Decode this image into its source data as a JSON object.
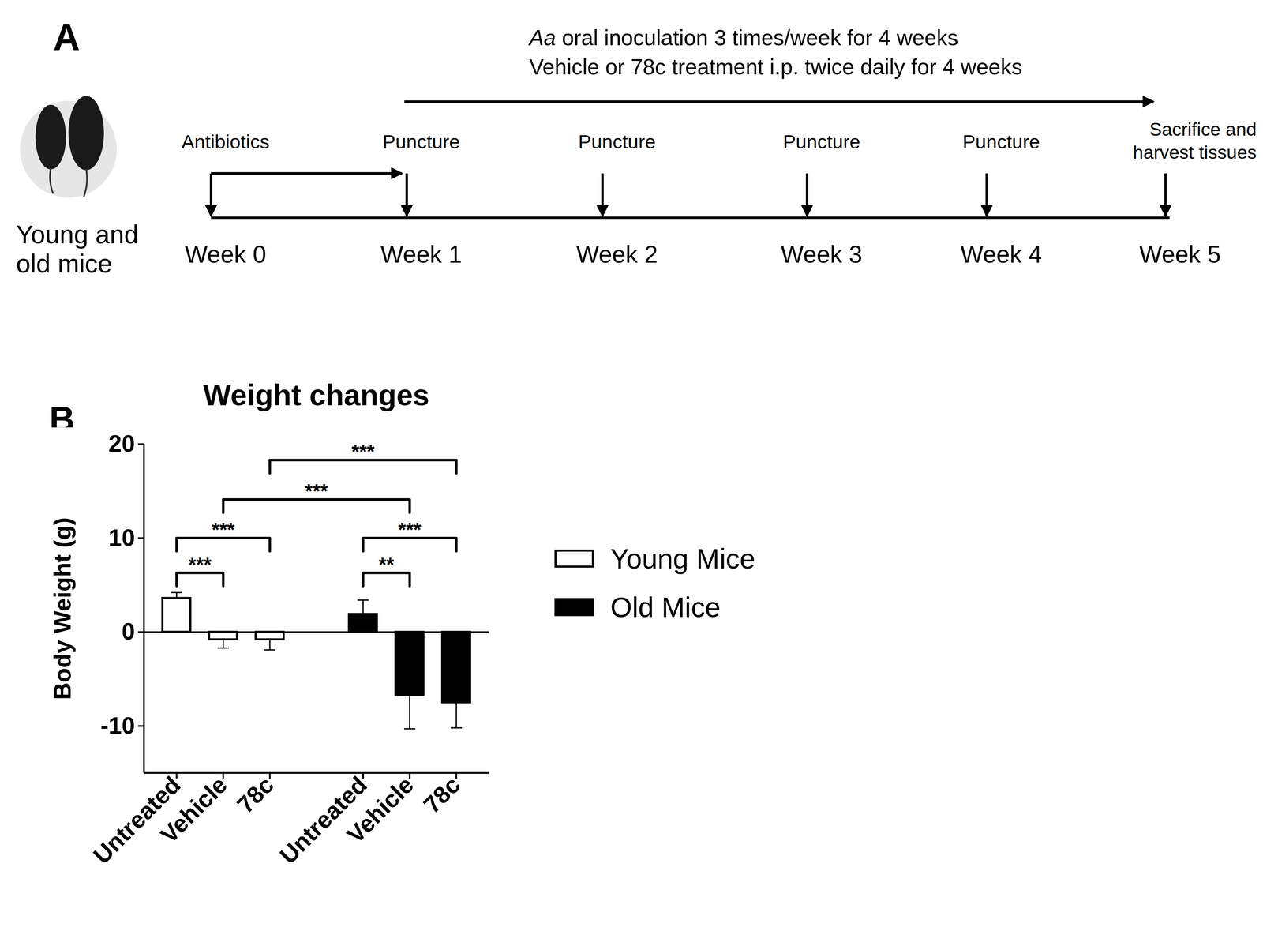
{
  "diagram": {
    "letter": "A",
    "subjects": "Young and old mice",
    "treatment_lines": [
      "Aa oral inoculation 3 times/week for 4 weeks",
      "Vehicle or 78c treatment i.p. twice daily for 4 weeks"
    ],
    "italic_term": "Aa",
    "timeline": [
      {
        "week": "Week 0",
        "event": "Antibiotics"
      },
      {
        "week": "Week 1",
        "event": "Puncture"
      },
      {
        "week": "Week 2",
        "event": "Puncture"
      },
      {
        "week": "Week 3",
        "event": "Puncture"
      },
      {
        "week": "Week 4",
        "event": "Puncture"
      },
      {
        "week": "Week 5",
        "event": "Sacrifice and harvest tissues"
      }
    ]
  },
  "chart_data": {
    "type": "bar",
    "panel_letter": "B",
    "title": "Weight changes",
    "y_label": "Body Weight (g)",
    "categories": [
      "Untreated",
      "Vehicle",
      "78c",
      null,
      "Untreated",
      "Vehicle",
      "78c"
    ],
    "series": [
      {
        "name": "Young Mice",
        "color": "#ffffff",
        "values": [
          3.6,
          -0.8,
          -0.8,
          null,
          null,
          null,
          null
        ],
        "errors": [
          0.6,
          0.9,
          1.1,
          null,
          null,
          null,
          null
        ]
      },
      {
        "name": "Old Mice",
        "color": "#000000",
        "values": [
          null,
          null,
          null,
          null,
          1.9,
          -6.7,
          -7.5
        ],
        "errors": [
          null,
          null,
          null,
          null,
          1.5,
          3.6,
          2.7
        ]
      }
    ],
    "brackets": [
      {
        "from": 0,
        "to": 1,
        "y": 6.3,
        "label": "***"
      },
      {
        "from": 0,
        "to": 2,
        "y": 10,
        "label": "***"
      },
      {
        "from": 4,
        "to": 5,
        "y": 6.3,
        "label": "**"
      },
      {
        "from": 4,
        "to": 6,
        "y": 10,
        "label": "***"
      },
      {
        "from": 1,
        "to": 5,
        "y": 14.1,
        "label": "***"
      },
      {
        "from": 2,
        "to": 6,
        "y": 18.3,
        "label": "***"
      }
    ],
    "ylim": [
      -15,
      20
    ],
    "yticks": [
      -10,
      0,
      10,
      20
    ],
    "grid": false,
    "legend": "right"
  }
}
